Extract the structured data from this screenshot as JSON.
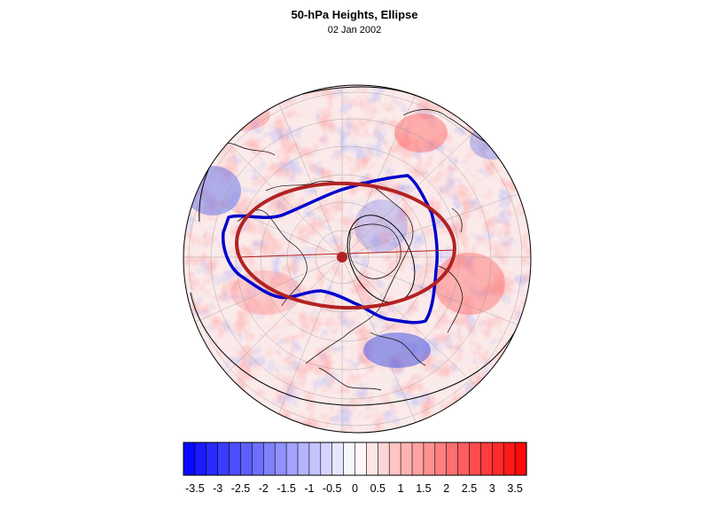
{
  "title": "50-hPa Heights, Ellipse",
  "date": "02 Jan 2002",
  "colorbar": {
    "tick_labels": [
      "-3.5",
      "-3",
      "-2.5",
      "-2",
      "-1.5",
      "-1",
      "-0.5",
      "0",
      "0.5",
      "1",
      "1.5",
      "2",
      "2.5",
      "3",
      "3.5"
    ],
    "min": -3.75,
    "max": 3.75,
    "step": 0.25,
    "neg_color": "#0000ff",
    "pos_color": "#ff0000"
  },
  "map": {
    "projection": "north-polar-orthographic",
    "vortex_contour_color": "#0000cc",
    "ellipse_color": "#b22222",
    "centroid_color": "#b22222"
  }
}
